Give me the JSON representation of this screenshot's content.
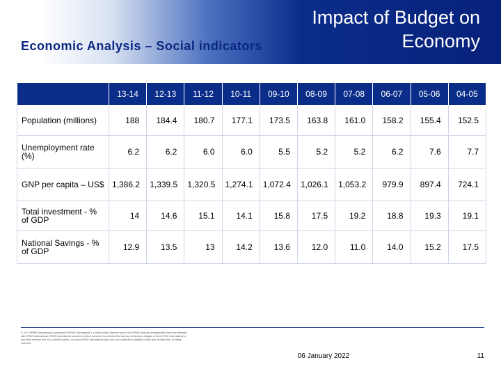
{
  "slide": {
    "title": "Impact of Budget on Economy",
    "subtitle": "Economic Analysis – Social indicators"
  },
  "table": {
    "columns": [
      "13-14",
      "12-13",
      "11-12",
      "10-11",
      "09-10",
      "08-09",
      "07-08",
      "06-07",
      "05-06",
      "04-05"
    ],
    "rows": [
      {
        "label": "Population (millions)",
        "values": [
          "188",
          "184.4",
          "180.7",
          "177.1",
          "173.5",
          "163.8",
          "161.0",
          "158.2",
          "155.4",
          "152.5"
        ]
      },
      {
        "label": "Unemployment rate (%)",
        "values": [
          "6.2",
          "6.2",
          "6.0",
          "6.0",
          "5.5",
          "5.2",
          "5.2",
          "6.2",
          "7.6",
          "7.7"
        ]
      },
      {
        "label": "GNP per capita – US$",
        "values": [
          "1,386.2",
          "1,339.5",
          "1,320.5",
          "1,274.1",
          "1,072.4",
          "1,026.1",
          "1,053.2",
          "979.9",
          "897.4",
          "724.1"
        ]
      },
      {
        "label": "Total investment - % of GDP",
        "values": [
          "14",
          "14.6",
          "15.1",
          "14.1",
          "15.8",
          "17.5",
          "19.2",
          "18.8",
          "19.3",
          "19.1"
        ]
      },
      {
        "label": "National Savings - % of GDP",
        "values": [
          "12.9",
          "13.5",
          "13",
          "14.2",
          "13.6",
          "12.0",
          "11.0",
          "14.0",
          "15.2",
          "17.5"
        ]
      }
    ]
  },
  "footer": {
    "disclaimer": "© 2014 KPMG International Cooperative (\"KPMG International\"), a Swiss entity. Member firms of the KPMG network of independent firms are affiliated with KPMG International. KPMG International provides no client services. No member firm has any authority to obligate or bind KPMG International or any other member firm vis-à-vis third parties, nor does KPMG International have any such authority to obligate or bind any member firm. All rights reserved.",
    "date": "06 January 2022",
    "page_number": "11"
  }
}
